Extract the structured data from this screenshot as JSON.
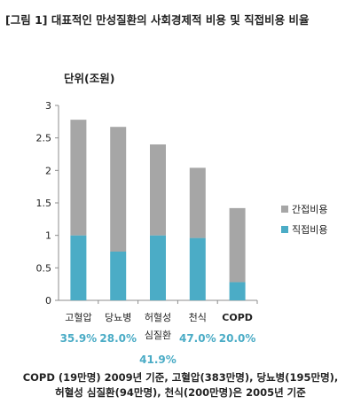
{
  "title": "[그림 1] 대표적인 만성질환의 사회경제적 비용 및 직접비용 비율",
  "chart_data": {
    "type": "bar",
    "stacked": true,
    "unit_label": "단위(조원)",
    "categories": [
      "고혈압",
      "당뇨병",
      "허혈성 심질환",
      "천식",
      "COPD"
    ],
    "series": [
      {
        "name": "직접비용",
        "color": "#4bacc6",
        "values": [
          1.0,
          0.75,
          1.0,
          0.96,
          0.28
        ]
      },
      {
        "name": "간접비용",
        "color": "#a6a6a6",
        "values": [
          1.78,
          1.92,
          1.4,
          1.08,
          1.14
        ]
      }
    ],
    "direct_ratio_labels": [
      "35.9%",
      "28.0%",
      "41.9%",
      "47.0%",
      "20.0%"
    ],
    "ylim": [
      0,
      3
    ],
    "yticks": [
      "0",
      "0.5",
      "1",
      "1.5",
      "2",
      "2.5",
      "3"
    ],
    "legend_position": "right",
    "grid": false
  },
  "footnotes": [
    "COPD (19만명) 2009년 기준, 고혈압(383만명), 당뇨병(195만명),",
    "허혈성 심질환(94만명), 천식(200만명)은 2005년 기준"
  ]
}
